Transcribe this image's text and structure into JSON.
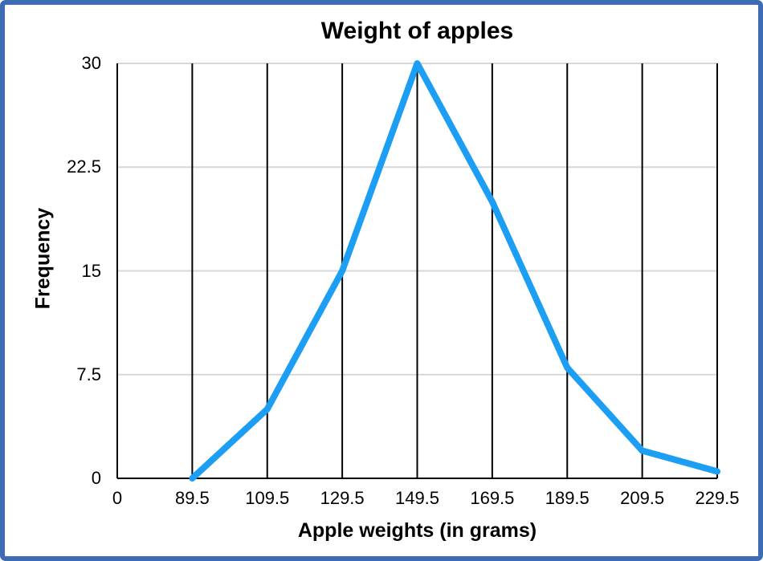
{
  "chart": {
    "title": "Weight of apples",
    "xlabel": "Apple weights (in grams)",
    "ylabel": "Frequency"
  },
  "chart_data": {
    "type": "line",
    "title": "Weight of apples",
    "xlabel": "Apple weights (in grams)",
    "ylabel": "Frequency",
    "x": [
      89.5,
      109.5,
      129.5,
      149.5,
      169.5,
      189.5,
      209.5,
      229.5
    ],
    "values": [
      0,
      5,
      15,
      30,
      20,
      8,
      2,
      0.5
    ],
    "series": [
      {
        "name": "Frequency",
        "values": [
          0,
          5,
          15,
          30,
          20,
          8,
          2,
          0.5
        ]
      }
    ],
    "xtick_labels": [
      "0",
      "89.5",
      "109.5",
      "129.5",
      "149.5",
      "169.5",
      "189.5",
      "209.5",
      "229.5"
    ],
    "ytick_values": [
      0,
      7.5,
      15,
      22.5,
      30
    ],
    "ytick_labels": [
      "0",
      "7.5",
      "15",
      "22.5",
      "30"
    ],
    "ylim": [
      0,
      30
    ],
    "legend": "none",
    "grid": {
      "vertical": "on-black",
      "horizontal": "on-light-gray"
    },
    "colors": {
      "line": "#1B9EF3",
      "frame_border": "#3D6BB4",
      "grid_horizontal": "#D7D7D7",
      "grid_vertical": "#000000",
      "axis": "#000000",
      "text": "#000000",
      "background": "#FFFFFF"
    }
  }
}
